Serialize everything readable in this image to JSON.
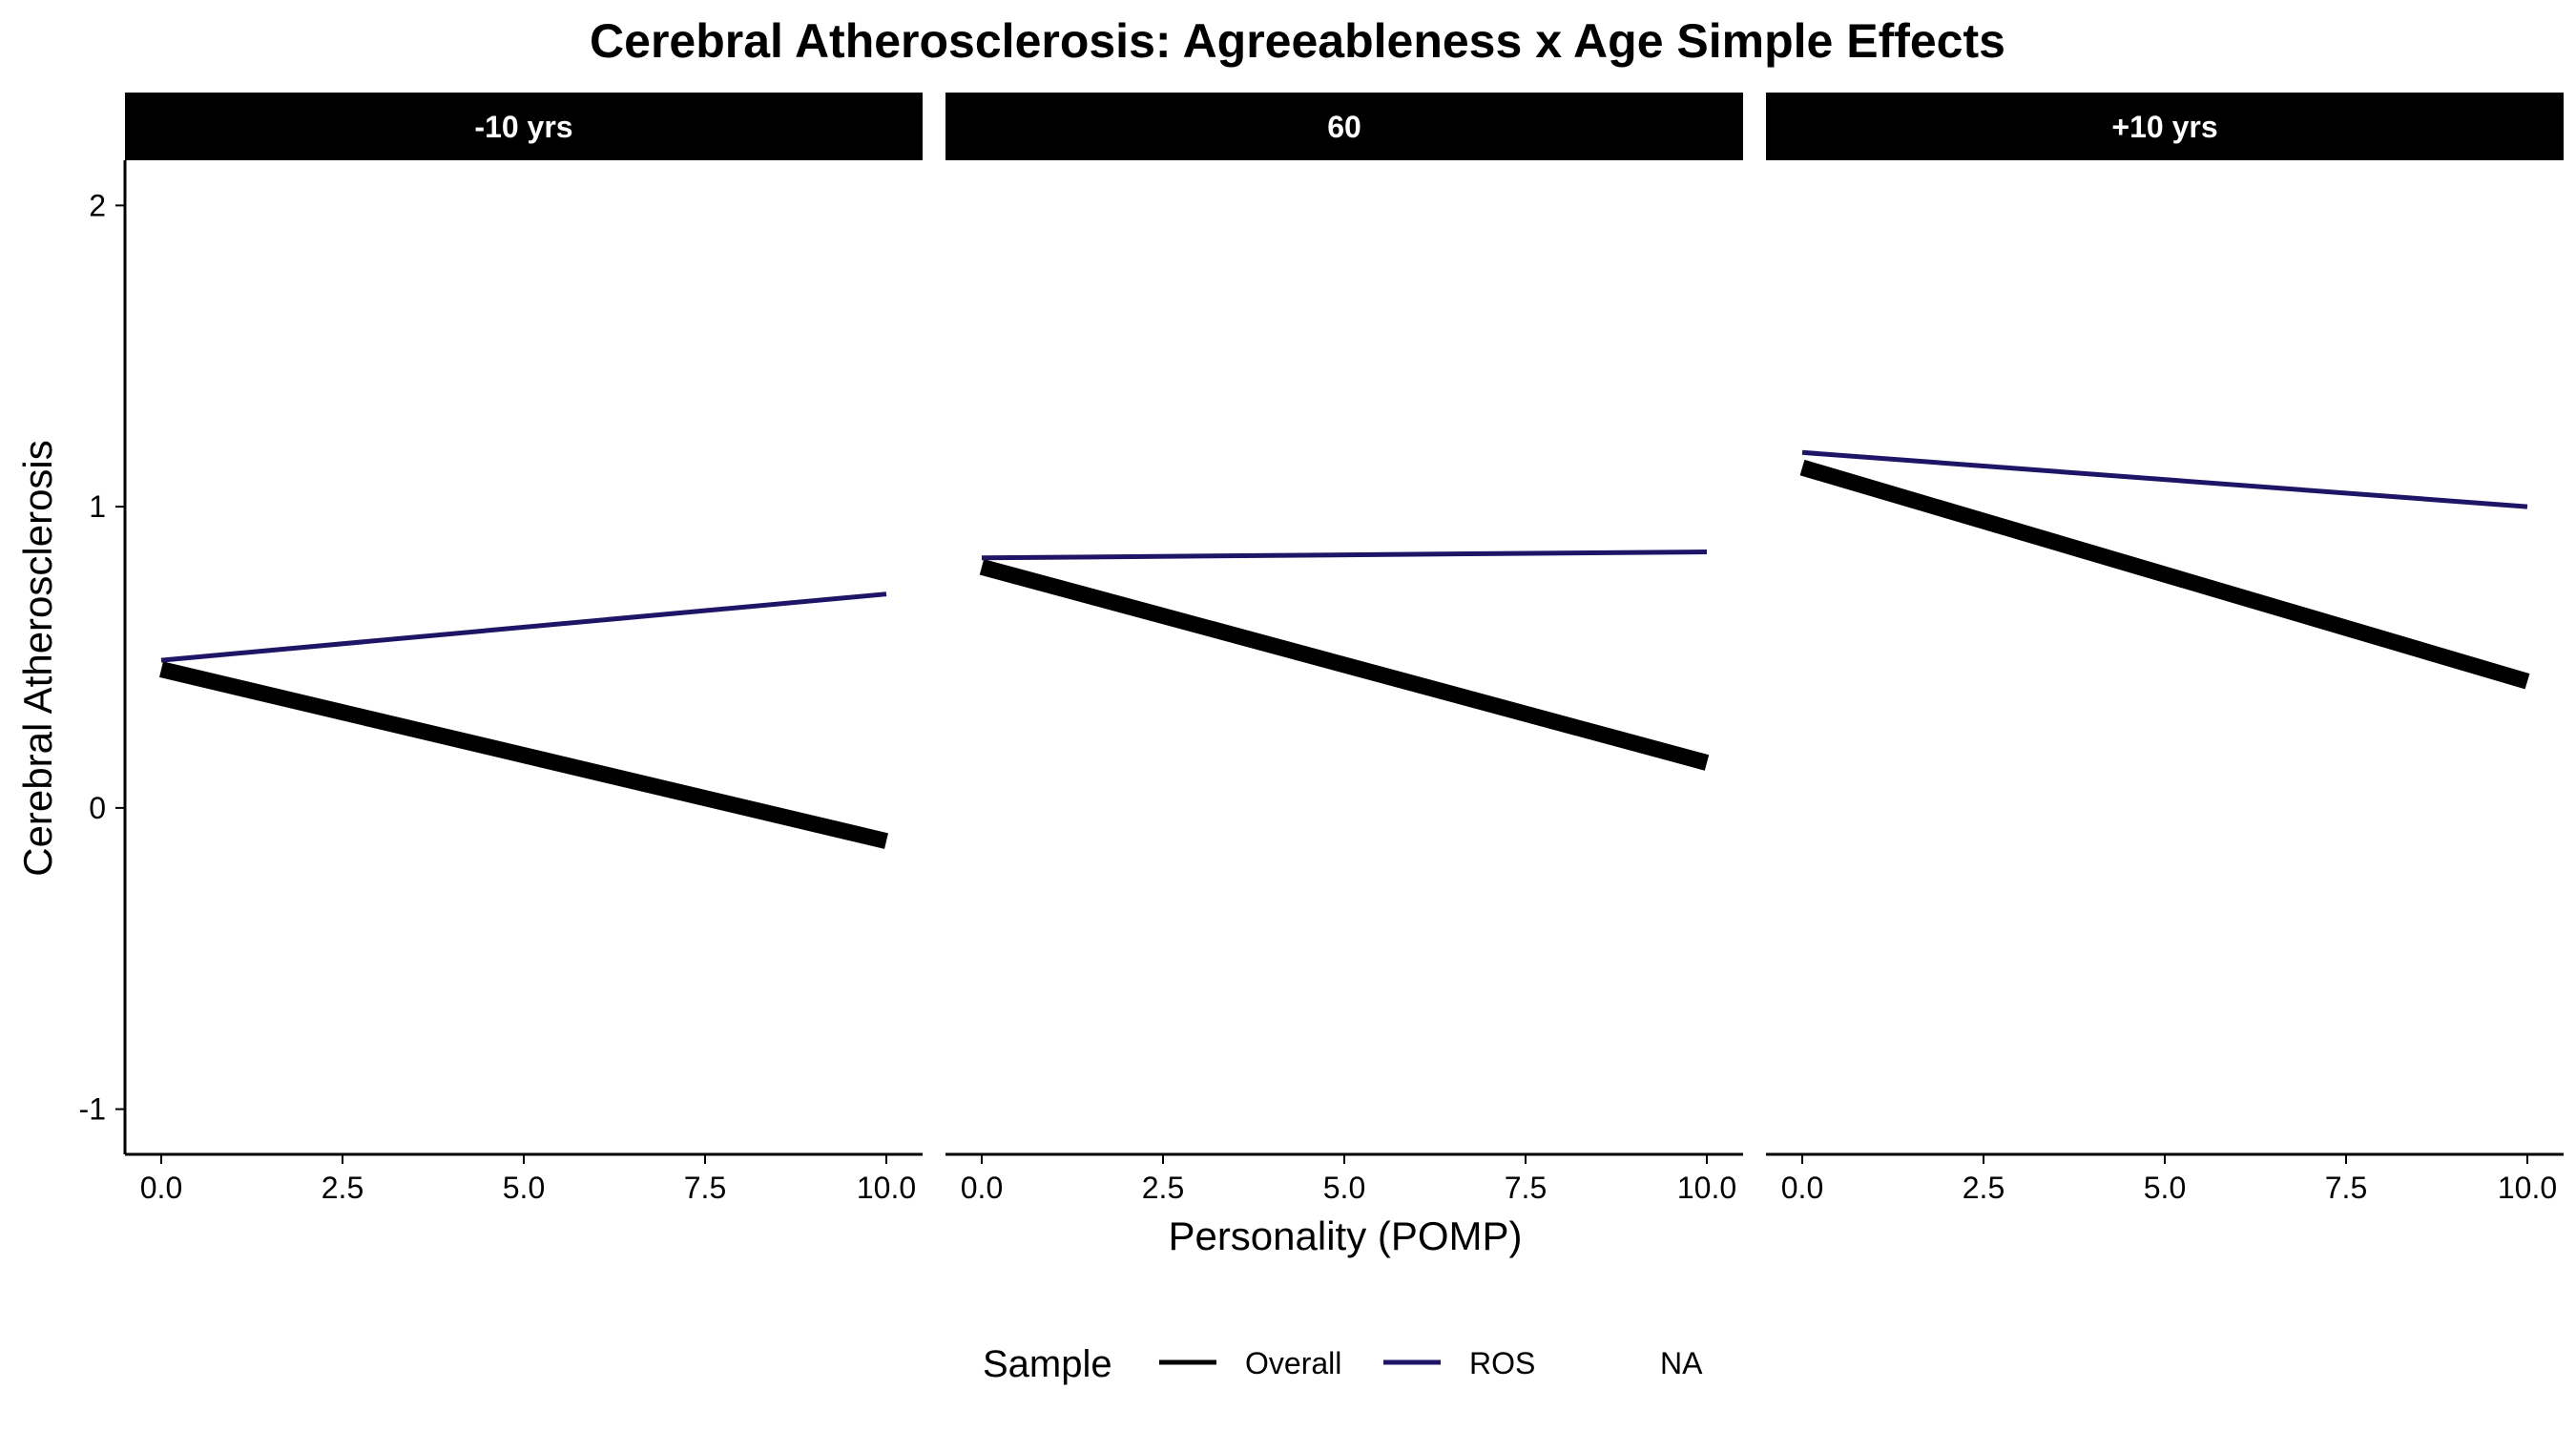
{
  "chart_data": {
    "type": "line",
    "title": "Cerebral Atherosclerosis: Agreeableness x Age Simple Effects",
    "xlabel": "Personality (POMP)",
    "ylabel": "Cerebral Atherosclerosis",
    "xlim": [
      -0.5,
      10.5
    ],
    "ylim": [
      -1.15,
      2.15
    ],
    "x_ticks": [
      0,
      2.5,
      5,
      7.5,
      10
    ],
    "x_tick_labels": [
      "0.0",
      "2.5",
      "5.0",
      "7.5",
      "10.0"
    ],
    "y_ticks": [
      -1,
      0,
      1,
      2
    ],
    "y_tick_labels": [
      "-1",
      "0",
      "1",
      "2"
    ],
    "grid": false,
    "legend": {
      "title": "Sample",
      "position": "bottom",
      "entries": [
        {
          "label": "Overall",
          "color": "#000000"
        },
        {
          "label": "ROS",
          "color": "#1f1566"
        },
        {
          "label": "NA",
          "color": null
        }
      ]
    },
    "facets": [
      {
        "label": "-10 yrs",
        "series": [
          {
            "name": "Overall",
            "color": "#000000",
            "x": [
              0,
              10
            ],
            "y": [
              0.46,
              -0.11
            ]
          },
          {
            "name": "ROS",
            "color": "#1f1566",
            "x": [
              0,
              10
            ],
            "y": [
              0.49,
              0.71
            ]
          }
        ]
      },
      {
        "label": "60",
        "series": [
          {
            "name": "Overall",
            "color": "#000000",
            "x": [
              0,
              10
            ],
            "y": [
              0.8,
              0.15
            ]
          },
          {
            "name": "ROS",
            "color": "#1f1566",
            "x": [
              0,
              10
            ],
            "y": [
              0.83,
              0.85
            ]
          }
        ]
      },
      {
        "label": "+10 yrs",
        "series": [
          {
            "name": "Overall",
            "color": "#000000",
            "x": [
              0,
              10
            ],
            "y": [
              1.13,
              0.42
            ]
          },
          {
            "name": "ROS",
            "color": "#1f1566",
            "x": [
              0,
              10
            ],
            "y": [
              1.18,
              1.0
            ]
          }
        ]
      }
    ]
  }
}
